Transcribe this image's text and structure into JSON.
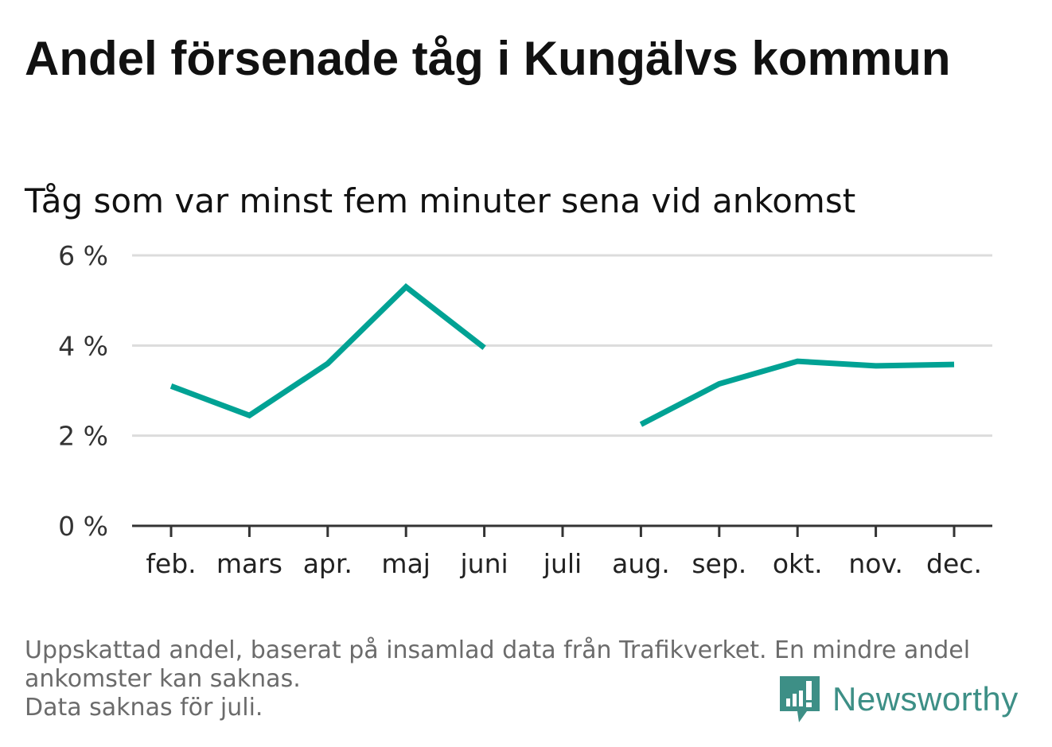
{
  "title": "Andel försenade tåg i Kungälvs kommun",
  "subtitle": "Tåg som var minst fem minuter sena vid ankomst",
  "footnote": {
    "line1": "Uppskattad andel, baserat på insamlad data från Trafikverket. En mindre andel",
    "line2": "ankomster kan saknas.",
    "line3": "Data saknas för juli."
  },
  "brand": {
    "name": "Newsworthy",
    "icon": "newsworthy-logo-icon",
    "color": "#3d8f86"
  },
  "colors": {
    "line": "#00a294",
    "grid": "#dcdcdc",
    "axis": "#333333"
  },
  "chart_data": {
    "type": "line",
    "title": "Andel försenade tåg i Kungälvs kommun",
    "subtitle": "Tåg som var minst fem minuter sena vid ankomst",
    "xlabel": "",
    "ylabel": "",
    "categories": [
      "feb.",
      "mars",
      "apr.",
      "maj",
      "juni",
      "juli",
      "aug.",
      "sep.",
      "okt.",
      "nov.",
      "dec."
    ],
    "series": [
      {
        "values": [
          3.1,
          2.45,
          3.6,
          5.3,
          3.95,
          null,
          2.25,
          3.15,
          3.65,
          3.55,
          3.58
        ]
      }
    ],
    "ylim": [
      0,
      6
    ],
    "yticks": [
      0,
      2,
      4,
      6
    ],
    "ytick_labels": [
      "0 %",
      "2 %",
      "4 %",
      "6 %"
    ],
    "grid": true,
    "legend": "none"
  }
}
